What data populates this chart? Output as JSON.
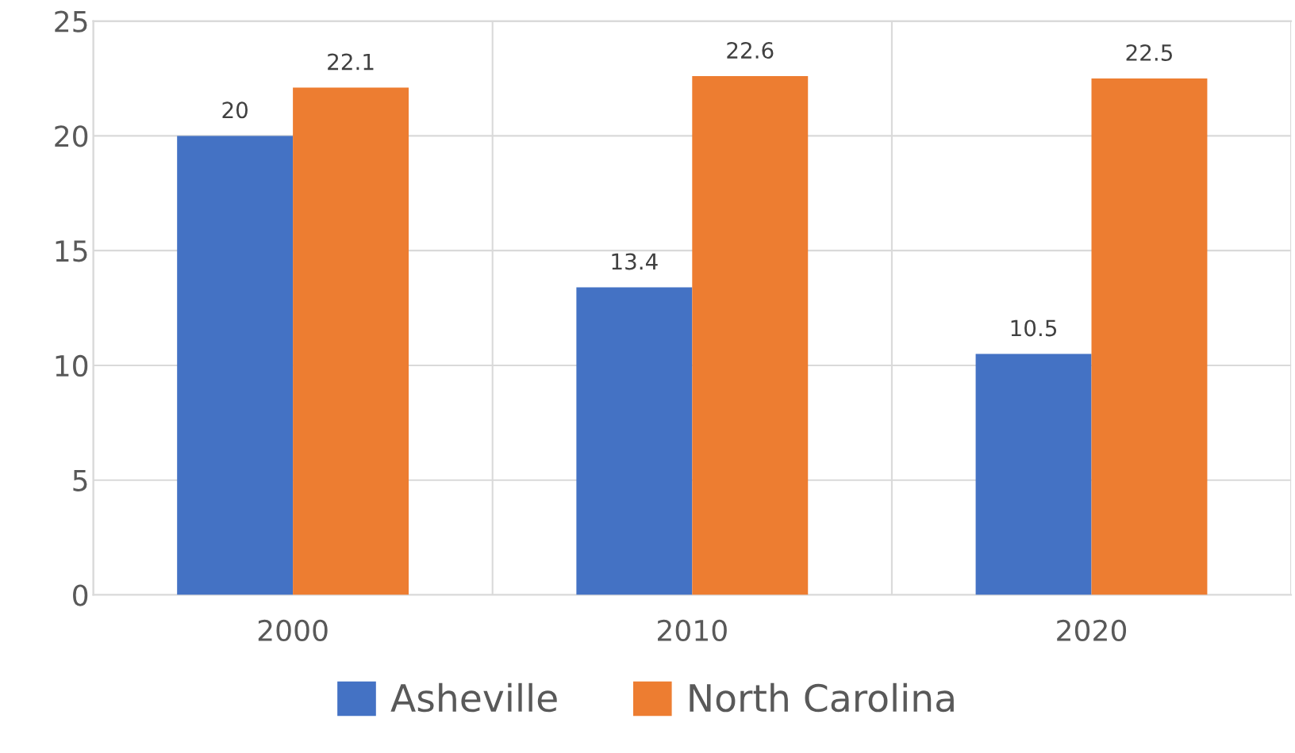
{
  "chart_data": {
    "type": "bar",
    "categories": [
      "2000",
      "2010",
      "2020"
    ],
    "series": [
      {
        "name": "Asheville",
        "color": "#4472c4",
        "values": [
          20,
          13.4,
          10.5
        ]
      },
      {
        "name": "North Carolina",
        "color": "#ed7d31",
        "values": [
          22.1,
          22.6,
          22.5
        ]
      }
    ],
    "ylim": [
      0,
      25
    ],
    "yticks": [
      0,
      5,
      10,
      15,
      20,
      25
    ],
    "grid": true,
    "legend": "bottom",
    "data_labels": true
  }
}
